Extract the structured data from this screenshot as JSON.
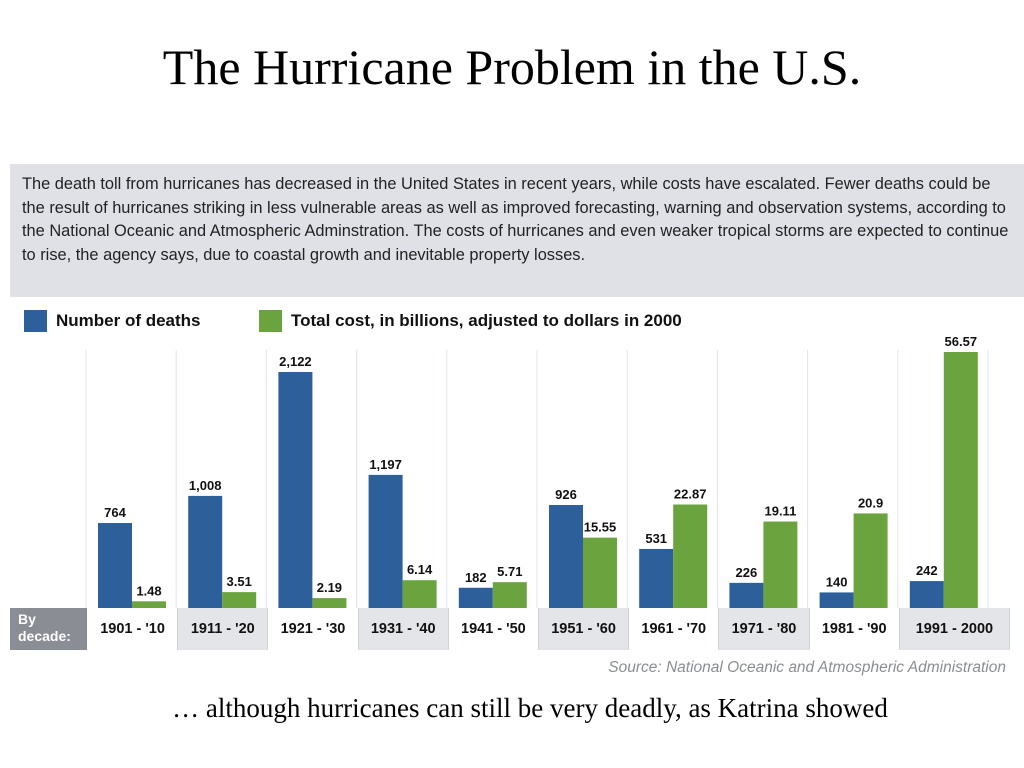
{
  "slide": {
    "title": "The Hurricane Problem in the U.S.",
    "caption": "… although hurricanes can still be very deadly, as Katrina showed"
  },
  "description": "The death toll from hurricanes has decreased in the United States in recent years, while costs have escalated. Fewer deaths could be the result of hurricanes striking in less vulnerable areas as well as improved forecasting, warning and observation systems, according to the National Oceanic and Atmospheric Adminstration. The costs of hurricanes and even weaker tropical storms are expected to continue to rise, the agency says, due to coastal growth and inevitable property losses.",
  "source": "Source: National Oceanic and Atmospheric Administration",
  "colors": {
    "deaths": "#2d5f9b",
    "cost": "#6ba33f"
  },
  "chart_data": {
    "type": "bar",
    "xlabel": "By\ndecade:",
    "categories": [
      "1901 - '10",
      "1911 - '20",
      "1921 - '30",
      "1931 - '40",
      "1941 - '50",
      "1951 - '60",
      "1961 - '70",
      "1971 - '80",
      "1981 - '90",
      "1991 - 2000"
    ],
    "series": [
      {
        "name": "Number of deaths",
        "values": [
          764,
          1008,
          2122,
          1197,
          182,
          926,
          531,
          226,
          140,
          242
        ],
        "labels": [
          "764",
          "1,008",
          "2,122",
          "1,197",
          "182",
          "926",
          "531",
          "226",
          "140",
          "242"
        ]
      },
      {
        "name": "Total cost, in billions, adjusted to dollars in 2000",
        "values": [
          1.48,
          3.51,
          2.19,
          6.14,
          5.71,
          15.55,
          22.87,
          19.11,
          20.9,
          56.57
        ],
        "labels": [
          "1.48",
          "3.51",
          "2.19",
          "6.14",
          "5.71",
          "15.55",
          "22.87",
          "19.11",
          "20.9",
          "56.57"
        ]
      }
    ],
    "legend_position": "top-left",
    "grid": false
  }
}
